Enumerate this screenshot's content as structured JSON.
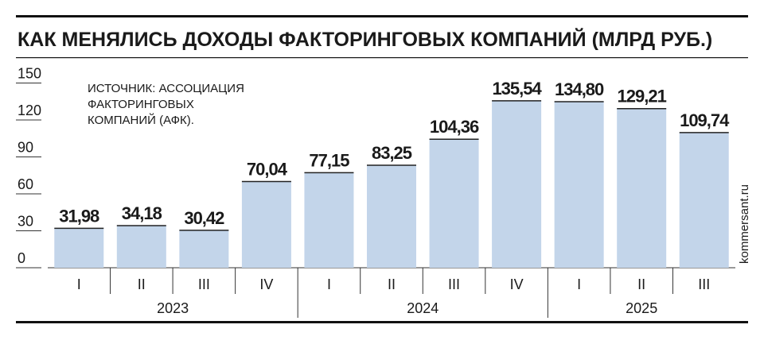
{
  "chart_data": {
    "type": "bar",
    "title": "КАК МЕНЯЛИСЬ ДОХОДЫ ФАКТОРИНГОВЫХ КОМПАНИЙ (МЛРД РУБ.)",
    "source": [
      "ИСТОЧНИК: АССОЦИАЦИЯ",
      "ФАКТОРИНГОВЫХ",
      "КОМПАНИЙ (АФК)."
    ],
    "credit": "kommersant.ru",
    "groups": [
      {
        "label": "2023",
        "categories": [
          "I",
          "II",
          "III",
          "IV"
        ]
      },
      {
        "label": "2024",
        "categories": [
          "I",
          "II",
          "III",
          "IV"
        ]
      },
      {
        "label": "2025",
        "categories": [
          "I",
          "II",
          "III"
        ]
      }
    ],
    "values": [
      31.98,
      34.18,
      30.42,
      70.04,
      77.15,
      83.25,
      104.36,
      135.54,
      134.8,
      129.21,
      109.74
    ],
    "value_labels": [
      "31,98",
      "34,18",
      "30,42",
      "70,04",
      "77,15",
      "83,25",
      "104,36",
      "135,54",
      "134,80",
      "129,21",
      "109,74"
    ],
    "color": "#c3d5ea",
    "ylim": [
      0,
      150
    ],
    "yticks": [
      0,
      30,
      60,
      90,
      120,
      150
    ]
  }
}
